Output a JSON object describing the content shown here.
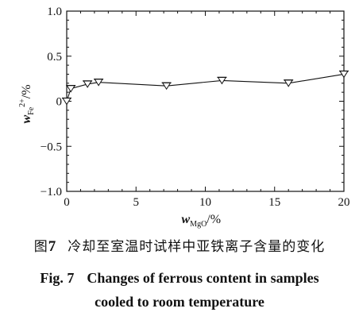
{
  "chart_data": {
    "type": "line",
    "x": [
      0,
      0.3,
      1.5,
      2.3,
      7.2,
      11.2,
      16.0,
      20.0
    ],
    "series": [
      {
        "values": [
          0.0,
          0.14,
          0.19,
          0.21,
          0.17,
          0.23,
          0.2,
          0.3
        ],
        "marker": "triangle-down-with-bar"
      }
    ],
    "xlim": [
      0,
      20
    ],
    "ylim": [
      -1.0,
      1.0
    ],
    "xticks": [
      0,
      5,
      10,
      15,
      20
    ],
    "xtick_labels": [
      "0",
      "5",
      "10",
      "15",
      "20"
    ],
    "yticks": [
      -1.0,
      -0.5,
      0,
      0.5,
      1.0
    ],
    "ytick_labels": [
      "−1.0",
      "−0.5",
      "0",
      "0.5",
      "1.0"
    ],
    "xlabel": {
      "main": "w",
      "sub": "MgO",
      "suffix": "/%"
    },
    "ylabel": {
      "main": "w",
      "sub": "Fe",
      "sup": "2+",
      "suffix": "/%"
    },
    "grid": false,
    "line_color": "#111111"
  },
  "caption": {
    "cn_prefix": "图",
    "cn_number": "7",
    "cn_text": "冷却至室温时试样中亚铁离子含量的变化",
    "en_label": "Fig. 7",
    "en_line1": "Changes of ferrous content in samples",
    "en_line2": "cooled to room temperature"
  }
}
